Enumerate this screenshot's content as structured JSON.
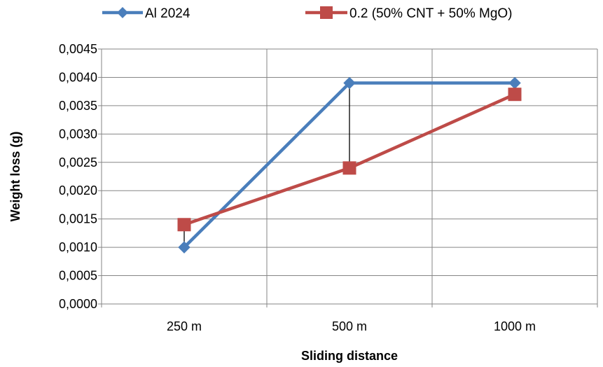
{
  "chart_data": {
    "type": "line",
    "categories": [
      "250 m",
      "500 m",
      "1000 m"
    ],
    "series": [
      {
        "name": "Al 2024",
        "values": [
          0.001,
          0.0039,
          0.0039
        ],
        "color": "#4A7EBB",
        "marker": "diamond"
      },
      {
        "name": "0.2 (50% CNT + 50% MgO)",
        "values": [
          0.0014,
          0.0024,
          0.0037
        ],
        "color": "#BE4B48",
        "marker": "square"
      }
    ],
    "xlabel": "Sliding distance",
    "ylabel": "Weight loss (g)",
    "ylim": [
      0,
      0.0045
    ],
    "ytick_labels": [
      "0,0000",
      "0,0005",
      "0,0010",
      "0,0015",
      "0,0020",
      "0,0025",
      "0,0030",
      "0,0035",
      "0,0040",
      "0,0045"
    ],
    "drop_lines": true,
    "grid": "major gridlines on both axes",
    "legend_position": "top"
  }
}
